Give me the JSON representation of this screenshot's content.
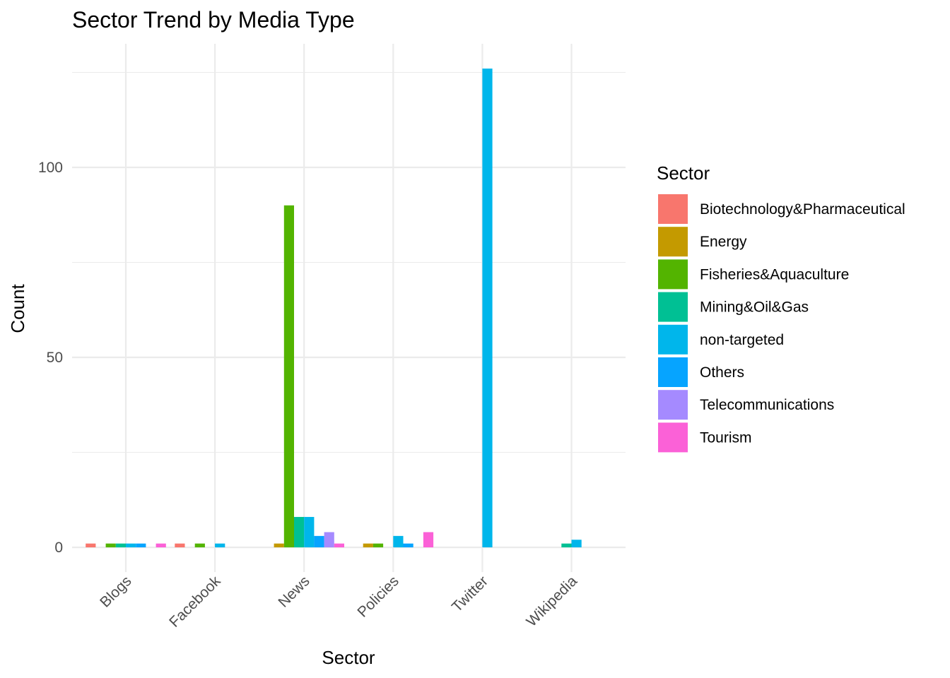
{
  "chart_data": {
    "type": "bar",
    "title": "Sector Trend by Media Type",
    "xlabel": "Sector",
    "ylabel": "Count",
    "legend_title": "Sector",
    "legend_position": "right",
    "grid": true,
    "ylim": [
      -5,
      126
    ],
    "y_ticks": [
      0,
      50,
      100
    ],
    "categories": [
      "Blogs",
      "Facebook",
      "News",
      "Policies",
      "Twitter",
      "Wikipedia"
    ],
    "series": [
      {
        "name": "Biotechnology&Pharmaceutical",
        "color": "#F8766D",
        "values": [
          1,
          1,
          0,
          0,
          0,
          0
        ]
      },
      {
        "name": "Energy",
        "color": "#C49A00",
        "values": [
          0,
          0,
          1,
          1,
          0,
          0
        ]
      },
      {
        "name": "Fisheries&Aquaculture",
        "color": "#53B400",
        "values": [
          1,
          1,
          90,
          1,
          0,
          0
        ]
      },
      {
        "name": "Mining&Oil&Gas",
        "color": "#00C094",
        "values": [
          1,
          0,
          8,
          0,
          0,
          1
        ]
      },
      {
        "name": "non-targeted",
        "color": "#00B6EB",
        "values": [
          1,
          1,
          8,
          3,
          126,
          2
        ]
      },
      {
        "name": "Others",
        "color": "#06A4FF",
        "values": [
          1,
          0,
          3,
          1,
          0,
          0
        ]
      },
      {
        "name": "Telecommunications",
        "color": "#A58AFF",
        "values": [
          0,
          0,
          4,
          0,
          0,
          0
        ]
      },
      {
        "name": "Tourism",
        "color": "#FB61D7",
        "values": [
          1,
          0,
          1,
          4,
          0,
          0
        ]
      }
    ]
  }
}
